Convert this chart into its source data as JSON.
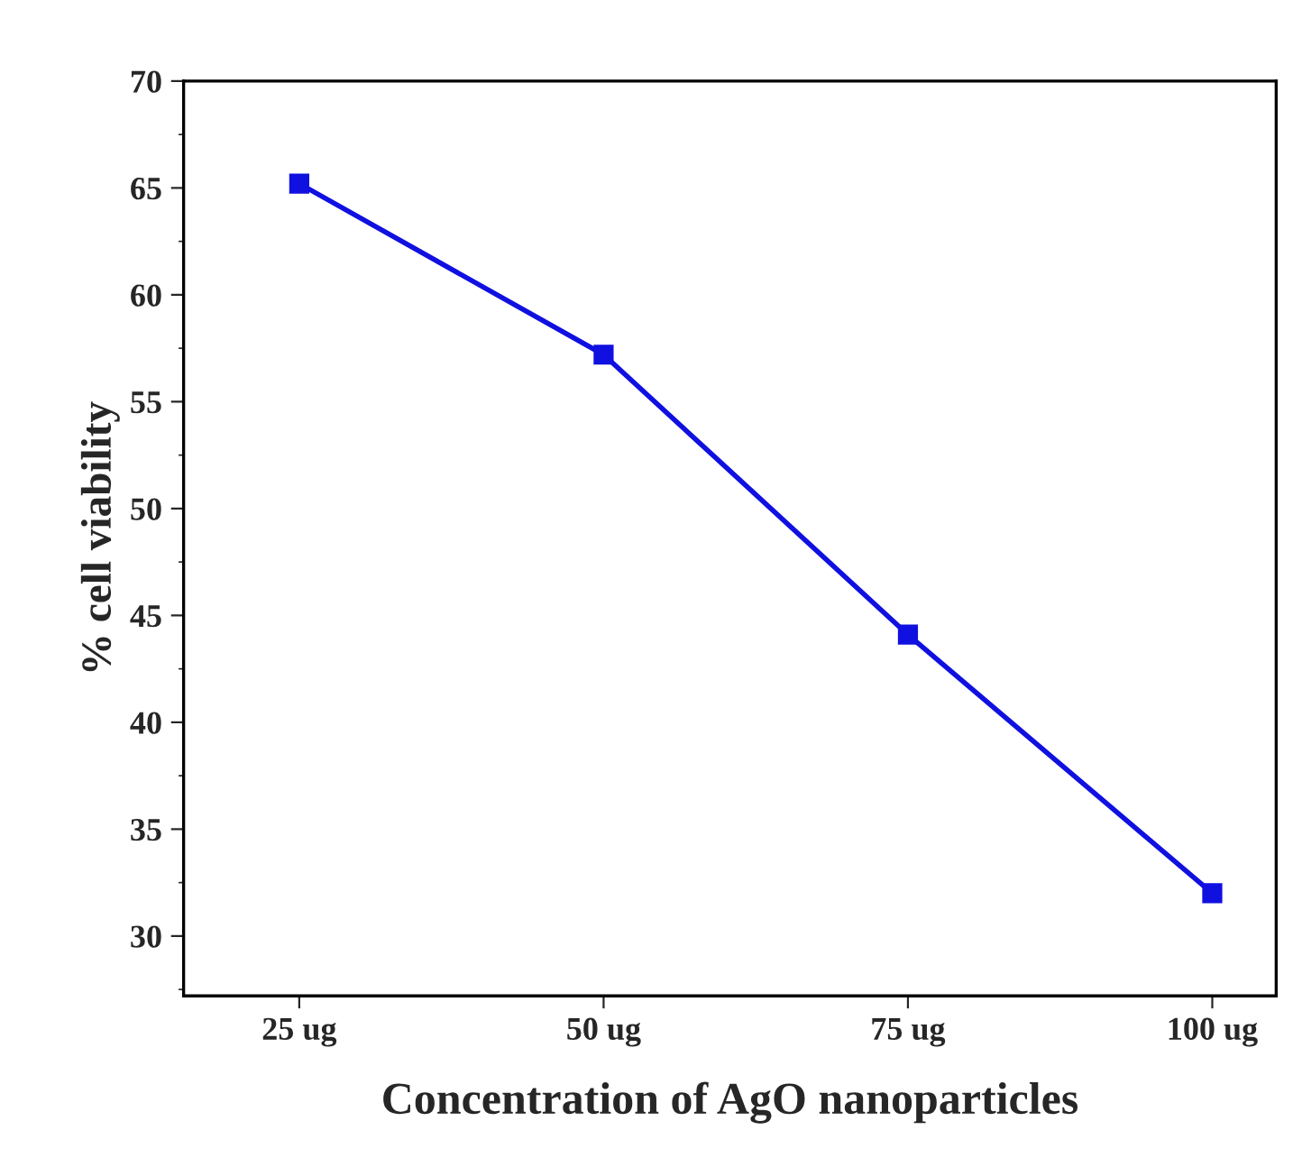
{
  "chart_data": {
    "type": "line",
    "xlabel": "Concentration of AgO nanoparticles",
    "ylabel": "% cell viability",
    "categories": [
      "25 ug",
      "50 ug",
      "75 ug",
      "100 ug"
    ],
    "series": [
      {
        "color": "#1010e0",
        "values": [
          65.2,
          57.2,
          44.1,
          32.0
        ]
      }
    ],
    "ylim": [
      27.2,
      70
    ],
    "yticks": [
      30,
      35,
      40,
      45,
      50,
      55,
      60,
      65,
      70
    ],
    "marker": "square",
    "line_style": "solid",
    "grid": false,
    "legend": false
  }
}
